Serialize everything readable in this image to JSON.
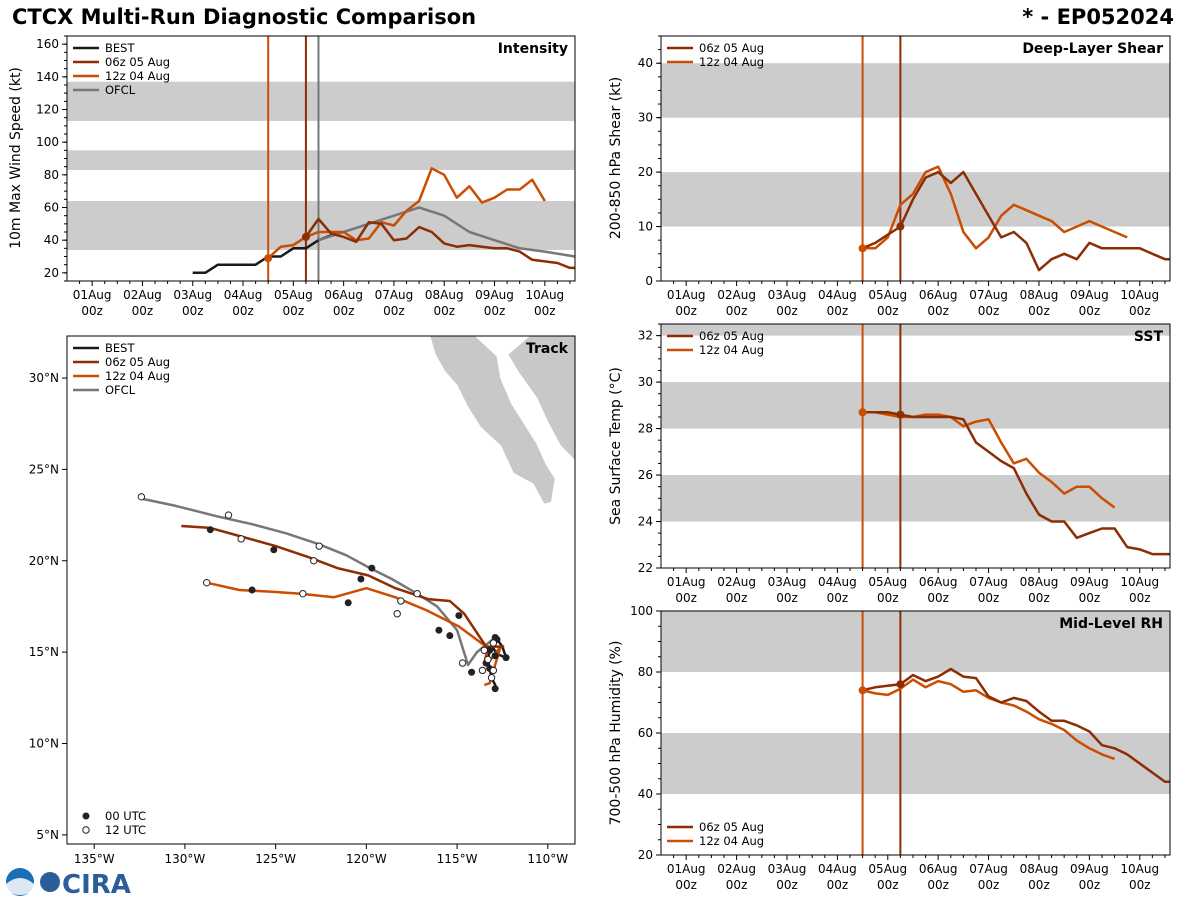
{
  "header": {
    "title": "CTCX Multi-Run Diagnostic Comparison",
    "storm": "* - EP052024"
  },
  "colors": {
    "best": "#1a1a1a",
    "run06": "#8c2d04",
    "run12": "#cc4c02",
    "ofcl": "#777777",
    "band": "#cccccc",
    "land": "#c8c8c8"
  },
  "time_labels": {
    "x": [
      0,
      1,
      2,
      3,
      4,
      5,
      6,
      7,
      8,
      9
    ],
    "dates": [
      "01Aug",
      "02Aug",
      "03Aug",
      "04Aug",
      "05Aug",
      "06Aug",
      "07Aug",
      "08Aug",
      "09Aug",
      "10Aug"
    ],
    "hour": "00z"
  },
  "logo": {
    "text": "CIRA"
  },
  "chart_data": [
    {
      "id": "intensity",
      "type": "line",
      "title": "Intensity",
      "xlabel": "",
      "ylabel": "10m Max Wind Speed (kt)",
      "xlim": [
        -0.5,
        9.6
      ],
      "ylim": [
        15,
        165
      ],
      "yticks": [
        20,
        40,
        60,
        80,
        100,
        120,
        140,
        160
      ],
      "bands": [
        [
          34,
          64
        ],
        [
          83,
          95
        ],
        [
          113,
          137
        ]
      ],
      "vlines": [
        {
          "series": "run12",
          "x": 3.5
        },
        {
          "series": "run06",
          "x": 4.25
        },
        {
          "series": "ofcl",
          "x": 4.5
        }
      ],
      "legend": [
        {
          "series": "best",
          "label": "BEST"
        },
        {
          "series": "run06",
          "label": "06z 05 Aug"
        },
        {
          "series": "run12",
          "label": "12z 04 Aug"
        },
        {
          "series": "ofcl",
          "label": "OFCL"
        }
      ],
      "series": [
        {
          "key": "best",
          "x": [
            2.0,
            2.25,
            2.5,
            2.75,
            3.0,
            3.25,
            3.5,
            3.75,
            4.0,
            4.25,
            4.5,
            4.75,
            5.0
          ],
          "y": [
            20,
            20,
            25,
            25,
            25,
            25,
            30,
            30,
            35,
            35,
            40,
            43,
            45
          ]
        },
        {
          "key": "ofcl",
          "x": [
            4.5,
            5.0,
            5.5,
            6.0,
            6.5,
            7.0,
            7.5,
            8.0,
            8.5,
            9.0,
            9.6
          ],
          "y": [
            40,
            45,
            50,
            55,
            60,
            55,
            45,
            40,
            35,
            33,
            30
          ]
        },
        {
          "key": "run12",
          "x": [
            3.5,
            3.75,
            4.0,
            4.25,
            4.5,
            4.75,
            5.0,
            5.25,
            5.5,
            5.75,
            6.0,
            6.25,
            6.5,
            6.75,
            7.0,
            7.25,
            7.5,
            7.75,
            8.0,
            8.25,
            8.5,
            8.75,
            9.0,
            9.25
          ],
          "y": [
            29,
            36,
            37,
            42,
            45,
            45,
            45,
            40,
            41,
            51,
            49,
            58,
            64,
            84,
            80,
            66,
            73,
            63,
            66,
            71,
            71,
            77,
            64,
            null
          ]
        },
        {
          "key": "run06",
          "x": [
            4.25,
            4.5,
            4.75,
            5.0,
            5.25,
            5.5,
            5.75,
            6.0,
            6.25,
            6.5,
            6.75,
            7.0,
            7.25,
            7.5,
            7.75,
            8.0,
            8.25,
            8.5,
            8.75,
            9.0,
            9.25,
            9.5,
            9.6
          ],
          "y": [
            42,
            53,
            44,
            42,
            39,
            51,
            50,
            40,
            41,
            48,
            45,
            38,
            36,
            37,
            36,
            35,
            35,
            33,
            28,
            27,
            26,
            23,
            23
          ]
        }
      ],
      "markers": [
        {
          "series": "run12",
          "x": 3.5,
          "y": 29
        },
        {
          "series": "run06",
          "x": 4.25,
          "y": 42
        }
      ]
    },
    {
      "id": "track",
      "type": "line",
      "title": "Track",
      "xlabel": "",
      "ylabel": "",
      "xlim": [
        -136.5,
        -108.5
      ],
      "ylim": [
        4.5,
        32.3
      ],
      "xticks": [
        -135,
        -130,
        -125,
        -120,
        -115,
        -110
      ],
      "xtick_labels": [
        "135°W",
        "130°W",
        "125°W",
        "120°W",
        "115°W",
        "110°W"
      ],
      "yticks": [
        5,
        10,
        15,
        20,
        25,
        30
      ],
      "ytick_labels": [
        "5°N",
        "10°N",
        "15°N",
        "20°N",
        "25°N",
        "30°N"
      ],
      "legend": [
        {
          "series": "best",
          "label": "BEST"
        },
        {
          "series": "run06",
          "label": "06z 05 Aug"
        },
        {
          "series": "run12",
          "label": "12z 04 Aug"
        },
        {
          "series": "ofcl",
          "label": "OFCL"
        }
      ],
      "marker_legend": [
        {
          "fill": "filled",
          "label": "00 UTC"
        },
        {
          "fill": "open",
          "label": "12 UTC"
        }
      ],
      "series": [
        {
          "key": "best",
          "lon": [
            -112.9,
            -112.9,
            -113.1,
            -113.2,
            -113.3,
            -113.2,
            -113.0,
            -112.8,
            -112.5,
            -112.3,
            -112.8,
            -113.0,
            -112.9
          ],
          "lat": [
            13.0,
            13.2,
            13.6,
            14.1,
            14.6,
            15.1,
            15.5,
            15.7,
            15.3,
            14.7,
            14.9,
            15.2,
            15.8
          ]
        },
        {
          "key": "ofcl",
          "lon": [
            -112.9,
            -113.9,
            -114.4,
            -115.0,
            -116.1,
            -117.2,
            -118.6,
            -119.8,
            -121.1,
            -122.6,
            -124.4,
            -126.3,
            -128.1,
            -130.5,
            -132.4
          ],
          "lat": [
            15.8,
            15.0,
            14.3,
            16.2,
            17.5,
            18.2,
            19.0,
            19.6,
            20.3,
            20.9,
            21.5,
            22.0,
            22.4,
            23.0,
            23.4
          ]
        },
        {
          "key": "run12",
          "lon": [
            -113.5,
            -113.2,
            -112.6,
            -113.3,
            -113.5,
            -113.3,
            -113.4,
            -114.9,
            -116.7,
            -118.4,
            -120.0,
            -121.8,
            -123.6,
            -125.2,
            -127.0,
            -128.8
          ],
          "lat": [
            13.2,
            13.3,
            15.3,
            14.4,
            14.4,
            15.3,
            15.3,
            16.4,
            17.3,
            18.0,
            18.5,
            18.0,
            18.2,
            18.3,
            18.4,
            18.8
          ]
        },
        {
          "key": "run06",
          "lon": [
            -112.4,
            -113.4,
            -114.6,
            -115.4,
            -116.6,
            -118.4,
            -119.9,
            -121.6,
            -123.2,
            -125.0,
            -126.8,
            -128.6,
            -130.2
          ],
          "lat": [
            15.3,
            15.3,
            17.1,
            17.8,
            17.9,
            18.5,
            19.2,
            19.6,
            20.2,
            20.8,
            21.3,
            21.8,
            21.9
          ]
        }
      ],
      "markers_00": [
        {
          "lon": -112.9,
          "lat": 13.0
        },
        {
          "lon": -113.2,
          "lat": 14.1
        },
        {
          "lon": -113.2,
          "lat": 15.1
        },
        {
          "lon": -112.8,
          "lat": 15.7
        },
        {
          "lon": -112.3,
          "lat": 14.7
        },
        {
          "lon": -112.9,
          "lat": 15.8
        },
        {
          "lon": -112.9,
          "lat": 14.8
        },
        {
          "lon": -114.2,
          "lat": 13.9
        },
        {
          "lon": -114.9,
          "lat": 17.0
        },
        {
          "lon": -119.7,
          "lat": 19.6
        },
        {
          "lon": -125.1,
          "lat": 20.6
        },
        {
          "lon": -128.6,
          "lat": 21.7
        },
        {
          "lon": -120.3,
          "lat": 19.0
        },
        {
          "lon": -115.4,
          "lat": 15.9
        },
        {
          "lon": -116.0,
          "lat": 16.2
        },
        {
          "lon": -121.0,
          "lat": 17.7
        },
        {
          "lon": -126.3,
          "lat": 18.4
        },
        {
          "lon": -113.4,
          "lat": 14.4
        }
      ],
      "markers_12": [
        {
          "lon": -113.1,
          "lat": 13.6
        },
        {
          "lon": -113.3,
          "lat": 14.6
        },
        {
          "lon": -113.0,
          "lat": 15.5
        },
        {
          "lon": -113.5,
          "lat": 15.1
        },
        {
          "lon": -113.0,
          "lat": 14.0
        },
        {
          "lon": -113.6,
          "lat": 14.0
        },
        {
          "lon": -114.7,
          "lat": 14.4
        },
        {
          "lon": -117.2,
          "lat": 18.2
        },
        {
          "lon": -122.6,
          "lat": 20.8
        },
        {
          "lon": -127.6,
          "lat": 22.5
        },
        {
          "lon": -132.4,
          "lat": 23.5
        },
        {
          "lon": -118.1,
          "lat": 17.8
        },
        {
          "lon": -122.9,
          "lat": 20.0
        },
        {
          "lon": -126.9,
          "lat": 21.2
        },
        {
          "lon": -118.3,
          "lat": 17.1
        },
        {
          "lon": -123.5,
          "lat": 18.2
        },
        {
          "lon": -128.8,
          "lat": 18.8
        }
      ]
    },
    {
      "id": "shear",
      "type": "line",
      "title": "Deep-Layer Shear",
      "xlabel": "",
      "ylabel": "200-850 hPa Shear (kt)",
      "xlim": [
        -0.5,
        9.6
      ],
      "ylim": [
        0,
        45
      ],
      "yticks": [
        0,
        10,
        20,
        30,
        40
      ],
      "bands": [
        [
          10,
          20
        ],
        [
          30,
          40
        ]
      ],
      "vlines": [
        {
          "series": "run12",
          "x": 3.5
        },
        {
          "series": "run06",
          "x": 4.25
        }
      ],
      "legend": [
        {
          "series": "run06",
          "label": "06z 05 Aug"
        },
        {
          "series": "run12",
          "label": "12z 04 Aug"
        }
      ],
      "series": [
        {
          "key": "run12",
          "x": [
            3.5,
            3.75,
            4.0,
            4.25,
            4.5,
            4.75,
            5.0,
            5.25,
            5.5,
            5.75,
            6.0,
            6.25,
            6.5,
            6.75,
            7.0,
            7.25,
            7.5,
            7.75,
            8.0,
            8.25,
            8.5,
            8.75,
            9.0,
            9.25
          ],
          "y": [
            6,
            6,
            8,
            14,
            16,
            20,
            21,
            16,
            9,
            6,
            8,
            12,
            14,
            13,
            12,
            11,
            9,
            10,
            11,
            10,
            9,
            8,
            null,
            null
          ]
        },
        {
          "key": "run06",
          "x": [
            3.5,
            3.75,
            4.0,
            4.25,
            4.5,
            4.75,
            5.0,
            5.25,
            5.5,
            5.75,
            6.0,
            6.25,
            6.5,
            6.75,
            7.0,
            7.25,
            7.5,
            7.75,
            8.0,
            8.25,
            8.5,
            8.75,
            9.0,
            9.25,
            9.5,
            9.6
          ],
          "y": [
            6,
            7,
            8.5,
            10,
            15,
            19,
            20,
            18,
            20,
            16,
            12,
            8,
            9,
            7,
            2,
            4,
            5,
            4,
            7,
            6,
            6,
            6,
            6,
            5,
            4,
            4
          ]
        }
      ],
      "markers": [
        {
          "series": "run12",
          "x": 3.5,
          "y": 6
        },
        {
          "series": "run06",
          "x": 4.25,
          "y": 10
        }
      ]
    },
    {
      "id": "sst",
      "type": "line",
      "title": "SST",
      "xlabel": "",
      "ylabel": "Sea Surface Temp (°C)",
      "xlim": [
        -0.5,
        9.6
      ],
      "ylim": [
        22,
        32.5
      ],
      "yticks": [
        22,
        24,
        26,
        28,
        30,
        32
      ],
      "bands": [
        [
          24,
          26
        ],
        [
          28,
          30
        ],
        [
          32,
          32.5
        ]
      ],
      "vlines": [
        {
          "series": "run12",
          "x": 3.5
        },
        {
          "series": "run06",
          "x": 4.25
        }
      ],
      "legend": [
        {
          "series": "run06",
          "label": "06z 05 Aug"
        },
        {
          "series": "run12",
          "label": "12z 04 Aug"
        }
      ],
      "series": [
        {
          "key": "run12",
          "x": [
            3.5,
            3.75,
            4.0,
            4.25,
            4.5,
            4.75,
            5.0,
            5.25,
            5.5,
            5.75,
            6.0,
            6.25,
            6.5,
            6.75,
            7.0,
            7.25,
            7.5,
            7.75,
            8.0,
            8.25,
            8.5,
            8.75
          ],
          "y": [
            28.7,
            28.7,
            28.6,
            28.5,
            28.5,
            28.6,
            28.6,
            28.5,
            28.1,
            28.3,
            28.4,
            27.4,
            26.5,
            26.7,
            26.1,
            25.7,
            25.2,
            25.5,
            25.5,
            25.0,
            24.6,
            null
          ]
        },
        {
          "key": "run06",
          "x": [
            3.5,
            3.75,
            4.0,
            4.25,
            4.5,
            4.75,
            5.0,
            5.25,
            5.5,
            5.75,
            6.0,
            6.25,
            6.5,
            6.75,
            7.0,
            7.25,
            7.5,
            7.75,
            8.0,
            8.25,
            8.5,
            8.75,
            9.0,
            9.25,
            9.5,
            9.6
          ],
          "y": [
            28.7,
            28.7,
            28.7,
            28.6,
            28.5,
            28.5,
            28.5,
            28.5,
            28.4,
            27.4,
            27.0,
            26.6,
            26.3,
            25.2,
            24.3,
            24.0,
            24.0,
            23.3,
            23.5,
            23.7,
            23.7,
            22.9,
            22.8,
            22.6,
            22.6,
            22.6
          ]
        }
      ],
      "markers": [
        {
          "series": "run12",
          "x": 3.5,
          "y": 28.7
        },
        {
          "series": "run06",
          "x": 4.25,
          "y": 28.6
        }
      ]
    },
    {
      "id": "rh",
      "type": "line",
      "title": "Mid-Level RH",
      "xlabel": "",
      "ylabel": "700-500 hPa Humidity (%)",
      "xlim": [
        -0.5,
        9.6
      ],
      "ylim": [
        20,
        100
      ],
      "yticks": [
        20,
        40,
        60,
        80,
        100
      ],
      "bands": [
        [
          40,
          60
        ],
        [
          80,
          100
        ]
      ],
      "vlines": [
        {
          "series": "run12",
          "x": 3.5
        },
        {
          "series": "run06",
          "x": 4.25
        }
      ],
      "legend": [
        {
          "series": "run06",
          "label": "06z 05 Aug"
        },
        {
          "series": "run12",
          "label": "12z 04 Aug"
        }
      ],
      "legend_position": "bottom-left",
      "series": [
        {
          "key": "run12",
          "x": [
            3.5,
            3.75,
            4.0,
            4.25,
            4.5,
            4.75,
            5.0,
            5.25,
            5.5,
            5.75,
            6.0,
            6.25,
            6.5,
            6.75,
            7.0,
            7.25,
            7.5,
            7.75,
            8.0,
            8.25,
            8.5,
            8.75
          ],
          "y": [
            74,
            73,
            72.5,
            74.5,
            77.5,
            75,
            77,
            76,
            73.5,
            74,
            71.5,
            70,
            69,
            67,
            64.5,
            63,
            61,
            57.5,
            55,
            53,
            51.5,
            null
          ]
        },
        {
          "key": "run06",
          "x": [
            3.5,
            3.75,
            4.0,
            4.25,
            4.5,
            4.75,
            5.0,
            5.25,
            5.5,
            5.75,
            6.0,
            6.25,
            6.5,
            6.75,
            7.0,
            7.25,
            7.5,
            7.75,
            8.0,
            8.25,
            8.5,
            8.75,
            9.0,
            9.25,
            9.5,
            9.6
          ],
          "y": [
            74,
            75,
            75.5,
            76,
            79,
            77,
            78.5,
            81,
            78.5,
            78,
            72,
            70,
            71.5,
            70.5,
            67,
            64,
            64,
            62.5,
            60.5,
            56,
            55,
            53,
            50,
            47,
            44,
            44
          ]
        }
      ],
      "markers": [
        {
          "series": "run12",
          "x": 3.5,
          "y": 74
        },
        {
          "series": "run06",
          "x": 4.25,
          "y": 76
        }
      ]
    }
  ]
}
